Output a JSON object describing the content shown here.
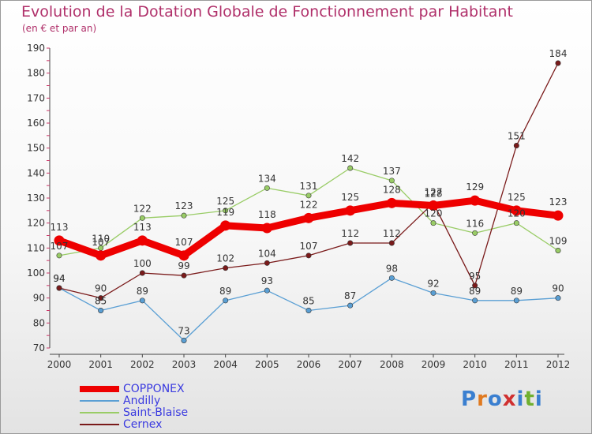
{
  "title": "Evolution de la Dotation Globale de Fonctionnement par Habitant",
  "subtitle": "(en € et par an)",
  "logo_text": "Proxiti",
  "logo_colors": [
    "#3a7fd0",
    "#e07a20",
    "#3a7fd0",
    "#d03030",
    "#3a7fd0",
    "#70b030",
    "#3a7fd0"
  ],
  "chart_data": {
    "type": "line",
    "title": "Evolution de la Dotation Globale de Fonctionnement par Habitant",
    "subtitle": "(en € et par an)",
    "x": [
      "2000",
      "2001",
      "2002",
      "2003",
      "2004",
      "2005",
      "2006",
      "2007",
      "2008",
      "2009",
      "2010",
      "2011",
      "2012"
    ],
    "ylim": [
      70,
      190
    ],
    "yticks": [
      70,
      80,
      90,
      100,
      110,
      120,
      130,
      140,
      150,
      160,
      170,
      180,
      190
    ],
    "grid": false,
    "legend_position": "bottom-left",
    "series": [
      {
        "name": "Andilly",
        "color": "#5a9fd4",
        "values": [
          94,
          85,
          89,
          73,
          89,
          93,
          85,
          87,
          98,
          92,
          89,
          89,
          90
        ]
      },
      {
        "name": "Saint-Blaise",
        "color": "#99cc66",
        "values": [
          107,
          110,
          122,
          123,
          125,
          134,
          131,
          142,
          137,
          120,
          116,
          120,
          109
        ]
      },
      {
        "name": "Cernex",
        "color": "#7a1a1a",
        "values": [
          94,
          90,
          100,
          99,
          102,
          104,
          107,
          112,
          112,
          128,
          95,
          151,
          184
        ]
      },
      {
        "name": "COPPONEX",
        "color": "#ee0000",
        "values": [
          113,
          107,
          113,
          107,
          119,
          118,
          122,
          125,
          128,
          127,
          129,
          125,
          123
        ]
      }
    ]
  }
}
